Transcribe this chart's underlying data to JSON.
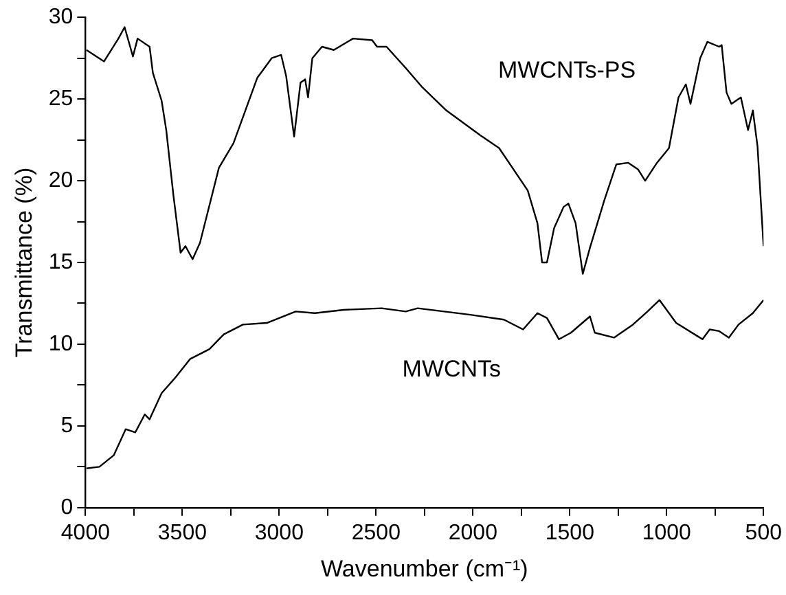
{
  "chart_data": {
    "type": "line",
    "xlabel": "Wavenumber (cm⁻¹)",
    "ylabel": "Transmittance (%)",
    "xlim": [
      4000,
      500
    ],
    "ylim": [
      0,
      30
    ],
    "xticks": [
      4000,
      {
        "value": 3750,
        "label": null
      },
      3500,
      {
        "value": 3250,
        "label": null
      },
      3000,
      {
        "value": 2750,
        "label": null
      },
      2500,
      {
        "value": 2250,
        "label": null
      },
      2000,
      {
        "value": 1750,
        "label": null
      },
      1500,
      {
        "value": 1250,
        "label": null
      },
      1000,
      {
        "value": 750,
        "label": null
      },
      500
    ],
    "yticks": [
      0,
      {
        "value": 2.5,
        "label": null
      },
      5,
      {
        "value": 7.5,
        "label": null
      },
      10,
      {
        "value": 12.5,
        "label": null
      },
      15,
      {
        "value": 17.5,
        "label": null
      },
      20,
      {
        "value": 22.5,
        "label": null
      },
      25,
      {
        "value": 27.5,
        "label": null
      },
      30
    ],
    "grid": false,
    "marker": "none",
    "line_style": "solid",
    "legend": false,
    "series": [
      {
        "name": "MWCNTs-PS",
        "color": "#000000",
        "x": [
          3995,
          3904,
          3830,
          3798,
          3755,
          3731,
          3669,
          3652,
          3607,
          3583,
          3546,
          3509,
          3484,
          3447,
          3409,
          3311,
          3236,
          3113,
          3039,
          2990,
          2964,
          2923,
          2890,
          2866,
          2851,
          2829,
          2779,
          2718,
          2619,
          2520,
          2495,
          2446,
          2347,
          2260,
          2137,
          1964,
          1865,
          1791,
          1717,
          1667,
          1643,
          1618,
          1581,
          1532,
          1507,
          1470,
          1433,
          1396,
          1322,
          1260,
          1198,
          1148,
          1111,
          1050,
          988,
          939,
          901,
          877,
          827,
          790,
          729,
          716,
          691,
          666,
          617,
          580,
          555,
          531,
          500
        ],
        "values": [
          28.0,
          27.3,
          28.7,
          29.4,
          27.6,
          28.7,
          28.2,
          26.6,
          24.9,
          23.1,
          19.1,
          15.6,
          16.0,
          15.2,
          16.2,
          20.8,
          22.3,
          26.3,
          27.5,
          27.7,
          26.4,
          22.7,
          26.0,
          26.2,
          25.1,
          27.5,
          28.2,
          28.0,
          28.7,
          28.6,
          28.2,
          28.2,
          26.9,
          25.7,
          24.3,
          22.8,
          22.0,
          20.7,
          19.4,
          17.4,
          15.0,
          15.0,
          17.1,
          18.4,
          18.6,
          17.4,
          14.3,
          15.9,
          18.8,
          21.0,
          21.1,
          20.7,
          20.0,
          21.1,
          22.0,
          25.1,
          25.9,
          24.7,
          27.5,
          28.5,
          28.2,
          28.3,
          25.4,
          24.7,
          25.1,
          23.1,
          24.3,
          22.1,
          16.0
        ]
      },
      {
        "name": "MWCNTs",
        "color": "#000000",
        "x": [
          3995,
          3928,
          3854,
          3792,
          3743,
          3694,
          3669,
          3607,
          3533,
          3459,
          3360,
          3286,
          3187,
          3064,
          2915,
          2816,
          2668,
          2471,
          2347,
          2285,
          2013,
          1840,
          1741,
          1667,
          1618,
          1556,
          1494,
          1396,
          1371,
          1272,
          1174,
          1099,
          1037,
          951,
          815,
          778,
          729,
          679,
          629,
          555,
          500
        ],
        "values": [
          2.4,
          2.5,
          3.2,
          4.8,
          4.6,
          5.7,
          5.4,
          7.0,
          8.0,
          9.1,
          9.7,
          10.6,
          11.2,
          11.3,
          12.0,
          11.9,
          12.1,
          12.2,
          12.0,
          12.2,
          11.8,
          11.5,
          10.9,
          11.9,
          11.6,
          10.3,
          10.7,
          11.7,
          10.7,
          10.4,
          11.2,
          12.0,
          12.7,
          11.3,
          10.3,
          10.9,
          10.8,
          10.4,
          11.2,
          11.9,
          12.7
        ]
      }
    ]
  }
}
